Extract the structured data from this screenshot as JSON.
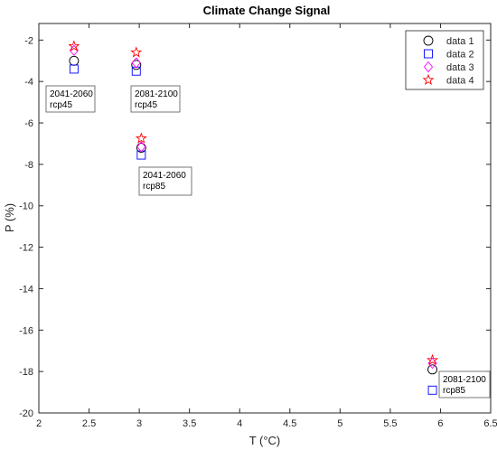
{
  "chart_data": {
    "type": "scatter",
    "title": "Climate Change Signal",
    "xlabel": "T (°C)",
    "ylabel": "P (%)",
    "xlim": [
      2,
      6.5
    ],
    "ylim": [
      -20,
      -1.2
    ],
    "xticks": [
      "2",
      "2.5",
      "3",
      "3.5",
      "4",
      "4.5",
      "5",
      "5.5",
      "6",
      "6.5"
    ],
    "yticks": [
      "-20",
      "-18",
      "-16",
      "-14",
      "-12",
      "-10",
      "-8",
      "-6",
      "-4",
      "-2"
    ],
    "xtick_values": [
      2,
      2.5,
      3,
      3.5,
      4,
      4.5,
      5,
      5.5,
      6,
      6.5
    ],
    "ytick_values": [
      -20,
      -18,
      -16,
      -14,
      -12,
      -10,
      -8,
      -6,
      -4,
      -2
    ],
    "grid": false,
    "legend_position": "top-right",
    "series": [
      {
        "name": "data 1",
        "marker": "circle",
        "color": "#000000",
        "x": [
          2.35,
          2.97,
          3.02,
          5.92
        ],
        "y": [
          -3.0,
          -3.2,
          -7.2,
          -17.9
        ]
      },
      {
        "name": "data 2",
        "marker": "square",
        "color": "#0000ff",
        "x": [
          2.35,
          2.97,
          3.02,
          5.92
        ],
        "y": [
          -3.4,
          -3.5,
          -7.55,
          -18.9
        ]
      },
      {
        "name": "data 3",
        "marker": "diamond",
        "color": "#ff00ff",
        "x": [
          2.35,
          2.97,
          3.02,
          5.92
        ],
        "y": [
          -2.5,
          -3.1,
          -7.15,
          -17.6
        ]
      },
      {
        "name": "data 4",
        "marker": "pentagram",
        "color": "#ff0000",
        "x": [
          2.35,
          2.97,
          3.02,
          5.92
        ],
        "y": [
          -2.3,
          -2.6,
          -6.75,
          -17.45
        ]
      }
    ],
    "annotations": [
      {
        "line1": "2041-2060",
        "line2": "rcp45"
      },
      {
        "line1": "2081-2100",
        "line2": "rcp45"
      },
      {
        "line1": "2041-2060",
        "line2": "rcp85"
      },
      {
        "line1": "2081-2100",
        "line2": "rcp85"
      }
    ]
  }
}
